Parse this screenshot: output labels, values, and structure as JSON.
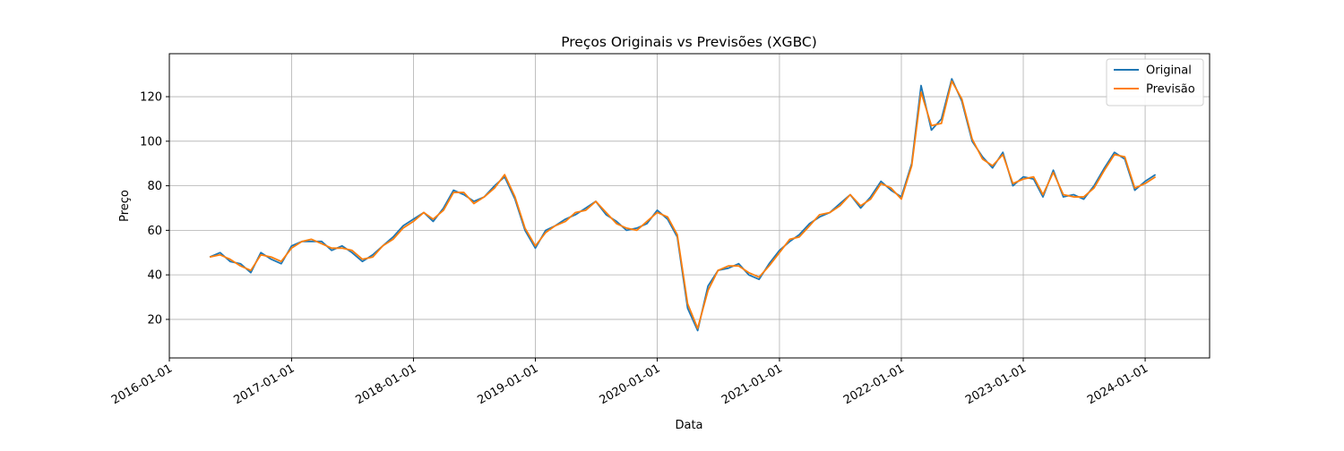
{
  "chart_data": {
    "type": "line",
    "title": "Preços Originais vs Previsões (XGBC)",
    "xlabel": "Data",
    "ylabel": "Preço",
    "x": [
      "2016-05-01",
      "2016-06-01",
      "2016-07-01",
      "2016-08-01",
      "2016-09-01",
      "2016-10-01",
      "2016-11-01",
      "2016-12-01",
      "2017-01-01",
      "2017-02-01",
      "2017-03-01",
      "2017-04-01",
      "2017-05-01",
      "2017-06-01",
      "2017-07-01",
      "2017-08-01",
      "2017-09-01",
      "2017-10-01",
      "2017-11-01",
      "2017-12-01",
      "2018-01-01",
      "2018-02-01",
      "2018-03-01",
      "2018-04-01",
      "2018-05-01",
      "2018-06-01",
      "2018-07-01",
      "2018-08-01",
      "2018-09-01",
      "2018-10-01",
      "2018-11-01",
      "2018-12-01",
      "2019-01-01",
      "2019-02-01",
      "2019-03-01",
      "2019-04-01",
      "2019-05-01",
      "2019-06-01",
      "2019-07-01",
      "2019-08-01",
      "2019-09-01",
      "2019-10-01",
      "2019-11-01",
      "2019-12-01",
      "2020-01-01",
      "2020-02-01",
      "2020-03-01",
      "2020-04-01",
      "2020-05-01",
      "2020-06-01",
      "2020-07-01",
      "2020-08-01",
      "2020-09-01",
      "2020-10-01",
      "2020-11-01",
      "2020-12-01",
      "2021-01-01",
      "2021-02-01",
      "2021-03-01",
      "2021-04-01",
      "2021-05-01",
      "2021-06-01",
      "2021-07-01",
      "2021-08-01",
      "2021-09-01",
      "2021-10-01",
      "2021-11-01",
      "2021-12-01",
      "2022-01-01",
      "2022-02-01",
      "2022-03-01",
      "2022-04-01",
      "2022-05-01",
      "2022-06-01",
      "2022-07-01",
      "2022-08-01",
      "2022-09-01",
      "2022-10-01",
      "2022-11-01",
      "2022-12-01",
      "2023-01-01",
      "2023-02-01",
      "2023-03-01",
      "2023-04-01",
      "2023-05-01",
      "2023-06-01",
      "2023-07-01",
      "2023-08-01",
      "2023-09-01",
      "2023-10-01",
      "2023-11-01",
      "2023-12-01",
      "2024-01-01",
      "2024-02-01"
    ],
    "series": [
      {
        "name": "Original",
        "color": "#1f77b4",
        "values": [
          48,
          50,
          46,
          45,
          41,
          50,
          47,
          45,
          53,
          55,
          55,
          55,
          51,
          53,
          50,
          46,
          49,
          53,
          57,
          62,
          65,
          68,
          64,
          70,
          78,
          76,
          73,
          75,
          80,
          84,
          74,
          60,
          52,
          60,
          62,
          65,
          67,
          70,
          73,
          67,
          64,
          60,
          61,
          63,
          69,
          65,
          57,
          25,
          15,
          35,
          42,
          43,
          45,
          40,
          38,
          45,
          51,
          55,
          58,
          63,
          66,
          68,
          72,
          76,
          70,
          75,
          82,
          78,
          75,
          90,
          125,
          105,
          110,
          128,
          118,
          100,
          93,
          88,
          95,
          80,
          84,
          83,
          75,
          87,
          75,
          76,
          74,
          80,
          88,
          95,
          92,
          78,
          82,
          85
        ]
      },
      {
        "name": "Previsão",
        "color": "#ff7f0e",
        "values": [
          48,
          49,
          47,
          44,
          42,
          49,
          48,
          46,
          52,
          55,
          56,
          54,
          52,
          52,
          51,
          47,
          48,
          53,
          56,
          61,
          64,
          68,
          65,
          69,
          77,
          77,
          72,
          75,
          79,
          85,
          75,
          61,
          53,
          59,
          62,
          64,
          68,
          69,
          73,
          68,
          63,
          61,
          60,
          64,
          68,
          66,
          58,
          27,
          16,
          33,
          42,
          44,
          44,
          41,
          39,
          44,
          50,
          56,
          57,
          62,
          67,
          68,
          71,
          76,
          71,
          74,
          81,
          79,
          74,
          89,
          122,
          107,
          108,
          127,
          119,
          101,
          92,
          89,
          94,
          81,
          83,
          84,
          76,
          86,
          76,
          75,
          75,
          79,
          87,
          94,
          93,
          79,
          81,
          84
        ]
      }
    ],
    "xlim": [
      "2016-01-01",
      "2024-07-12"
    ],
    "xticks": [
      "2016-01-01",
      "2017-01-01",
      "2018-01-01",
      "2019-01-01",
      "2020-01-01",
      "2021-01-01",
      "2022-01-01",
      "2023-01-01",
      "2024-01-01"
    ],
    "ylim": [
      2.7,
      139.3
    ],
    "yticks": [
      20,
      40,
      60,
      80,
      100,
      120
    ],
    "grid": true,
    "legend": "upper right"
  }
}
